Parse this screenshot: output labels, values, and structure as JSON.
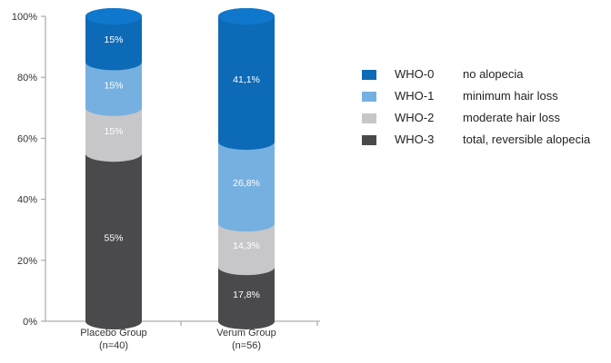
{
  "chart_data": {
    "type": "bar",
    "stacked": true,
    "bar_shape": "cylinder",
    "categories": [
      "Placebo Group\n(n=40)",
      "Verum Group\n(n=56)"
    ],
    "category_lines": [
      [
        "Placebo Group",
        "(n=40)"
      ],
      [
        "Verum Group",
        "(n=56)"
      ]
    ],
    "yticks": [
      "0%",
      "20%",
      "40%",
      "60%",
      "80%",
      "100%"
    ],
    "ylim": [
      0,
      100
    ],
    "series": [
      {
        "name": "WHO-3",
        "desc": "total, reversible alopecia",
        "color": "#4a4a4d",
        "values": [
          55,
          17.8
        ],
        "labels": [
          "55%",
          "17,8%"
        ]
      },
      {
        "name": "WHO-2",
        "desc": "moderate hair loss",
        "color": "#c7c7c9",
        "values": [
          15,
          14.3
        ],
        "labels": [
          "15%",
          "14,3%"
        ]
      },
      {
        "name": "WHO-1",
        "desc": "minimum hair loss",
        "color": "#76b0e0",
        "values": [
          15,
          26.8
        ],
        "labels": [
          "15%",
          "26,8%"
        ]
      },
      {
        "name": "WHO-0",
        "desc": "no alopecia",
        "color": "#0d6ab6",
        "values": [
          15,
          41.1
        ],
        "labels": [
          "15%",
          "41,1%"
        ]
      }
    ],
    "legend_order": [
      3,
      2,
      1,
      0
    ],
    "legend_position": "right",
    "grid": false
  }
}
